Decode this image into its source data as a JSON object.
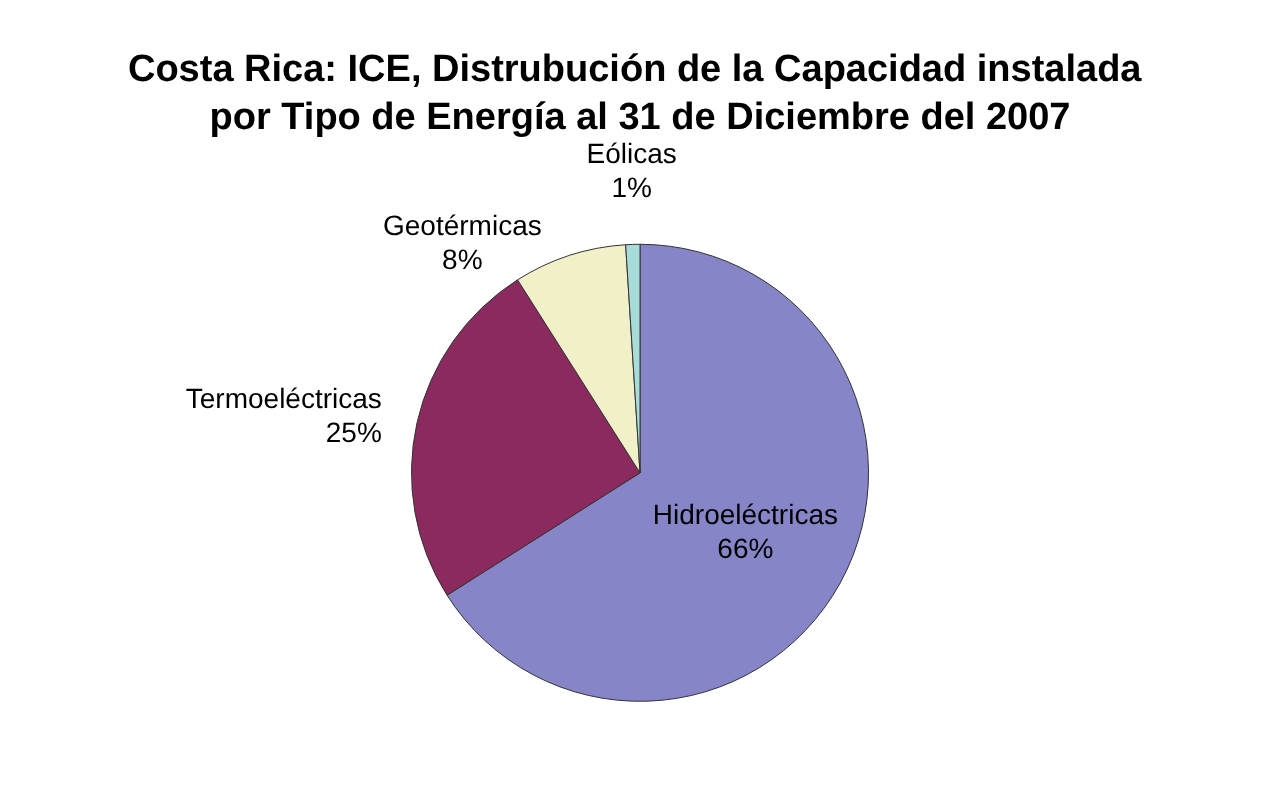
{
  "chart_data": {
    "type": "pie",
    "title": "Costa Rica: ICE, Distrubución de la Capacidad instalada por Tipo de Energía al 31 de Diciembre del 2007",
    "categories": [
      "Hidroeléctricas",
      "Termoeléctricas",
      "Geotérmicas",
      "Eólicas"
    ],
    "values": [
      66,
      25,
      8,
      1
    ],
    "value_labels": [
      "66%",
      "25%",
      "8%",
      "1%"
    ],
    "colors": [
      "#8585c8",
      "#8b2a5e",
      "#f2f0c8",
      "#a8dcd8"
    ],
    "legend": false
  }
}
